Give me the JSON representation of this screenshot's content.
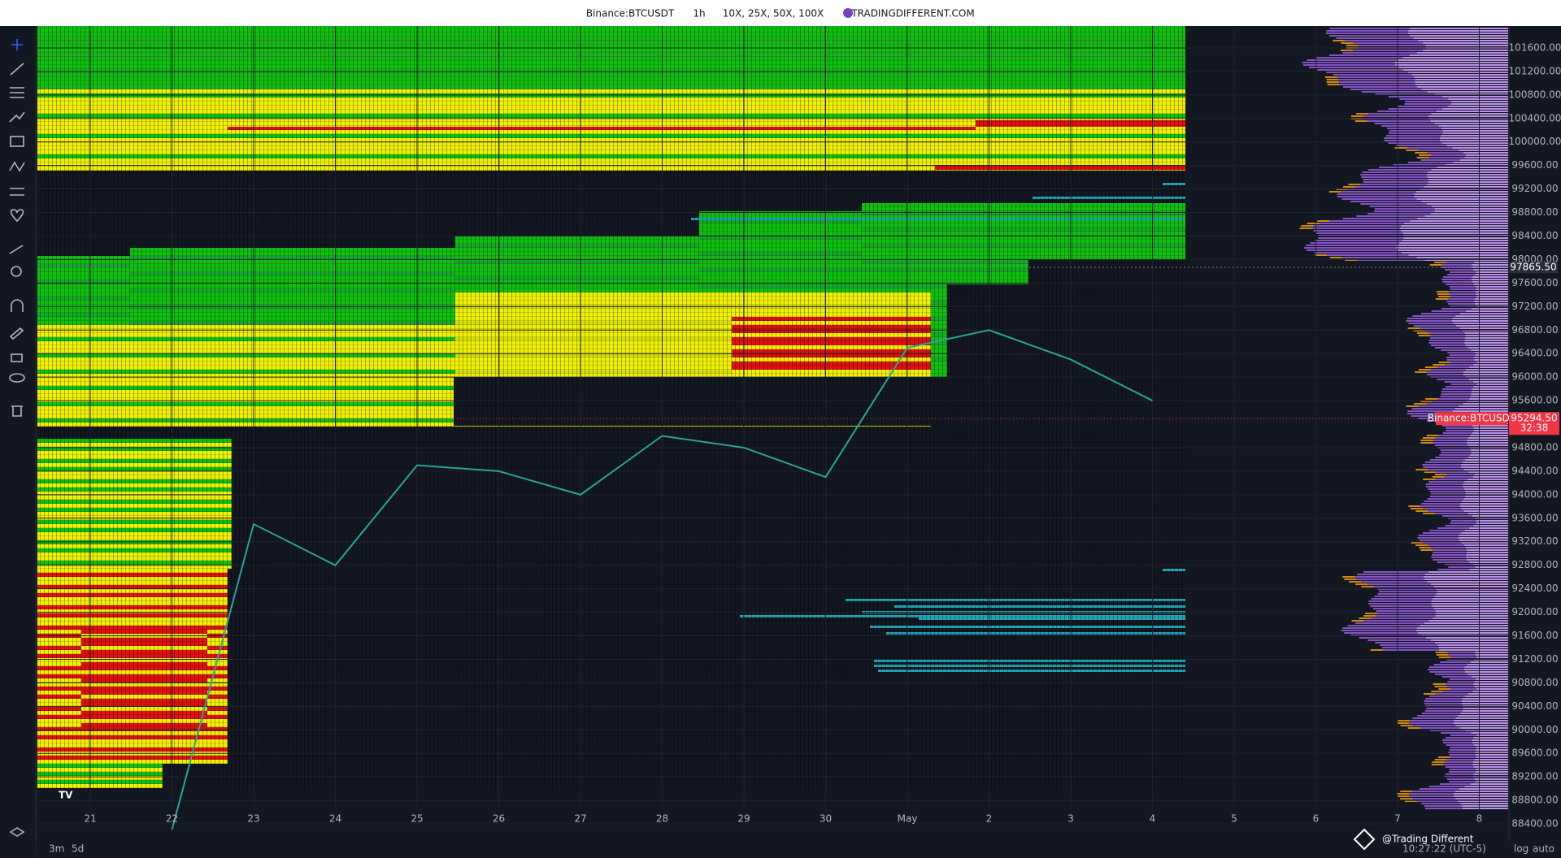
{
  "top_bar": {
    "symbol": "Binance:BTCUSDT",
    "interval": "1h",
    "leverage": "10X, 25X, 50X, 100X",
    "site": "TRADINGDIFFERENT.COM"
  },
  "chart_data": {
    "type": "line",
    "categories": [
      "21",
      "22",
      "23",
      "24",
      "25",
      "26",
      "27",
      "28",
      "29",
      "30",
      "May",
      "2",
      "3",
      "4",
      "5",
      "6",
      "7",
      "8"
    ],
    "values": [
      null,
      88300,
      93500,
      92800,
      94500,
      94400,
      94000,
      95000,
      94800,
      94300,
      96500,
      96800,
      96300,
      95600,
      null,
      null,
      null,
      null
    ],
    "color": "#26a69a",
    "ylim": [
      88000,
      102000
    ],
    "yticks": [
      {
        "value": 88400,
        "label": "88400.00"
      },
      {
        "value": 88800,
        "label": "88800.00"
      },
      {
        "value": 89200,
        "label": "89200.00"
      },
      {
        "value": 89600,
        "label": "89600.00"
      },
      {
        "value": 90000,
        "label": "90000.00"
      },
      {
        "value": 90400,
        "label": "90400.00"
      },
      {
        "value": 90800,
        "label": "90800.00"
      },
      {
        "value": 91200,
        "label": "91200.00"
      },
      {
        "value": 91600,
        "label": "91600.00"
      },
      {
        "value": 92000,
        "label": "92000.00"
      },
      {
        "value": 92400,
        "label": "92400.00"
      },
      {
        "value": 92800,
        "label": "92800.00"
      },
      {
        "value": 93200,
        "label": "93200.00"
      },
      {
        "value": 93600,
        "label": "93600.00"
      },
      {
        "value": 94000,
        "label": "94000.00"
      },
      {
        "value": 94400,
        "label": "94400.00"
      },
      {
        "value": 94800,
        "label": "94800.00"
      },
      {
        "value": 95600,
        "label": "95600.00"
      },
      {
        "value": 96000,
        "label": "96000.00"
      },
      {
        "value": 96400,
        "label": "96400.00"
      },
      {
        "value": 96800,
        "label": "96800.00"
      },
      {
        "value": 97200,
        "label": "97200.00"
      },
      {
        "value": 97600,
        "label": "97600.00"
      },
      {
        "value": 98000,
        "label": "98000.00"
      },
      {
        "value": 98400,
        "label": "98400.00"
      },
      {
        "value": 98800,
        "label": "98800.00"
      },
      {
        "value": 99200,
        "label": "99200.00"
      },
      {
        "value": 99600,
        "label": "99600.00"
      },
      {
        "value": 100000,
        "label": "100000.00"
      },
      {
        "value": 100400,
        "label": "100400.00"
      },
      {
        "value": 100800,
        "label": "100800.00"
      },
      {
        "value": 101200,
        "label": "101200.00"
      },
      {
        "value": 101600,
        "label": "101600.00"
      }
    ],
    "grid": true
  },
  "price_tags": {
    "high": {
      "value": 97865.5,
      "label": "97865.50"
    },
    "last": {
      "value": 95294.5,
      "label": "95294.50",
      "symbol": "Binance:BTCUSDT",
      "countdown": "32:38"
    }
  },
  "bottom_bar": {
    "range_1": "3m",
    "range_2": "5d",
    "clock": "10:27:22 (UTC-5)",
    "log": "log",
    "auto": "auto"
  },
  "watermark": "@Trading Different"
}
